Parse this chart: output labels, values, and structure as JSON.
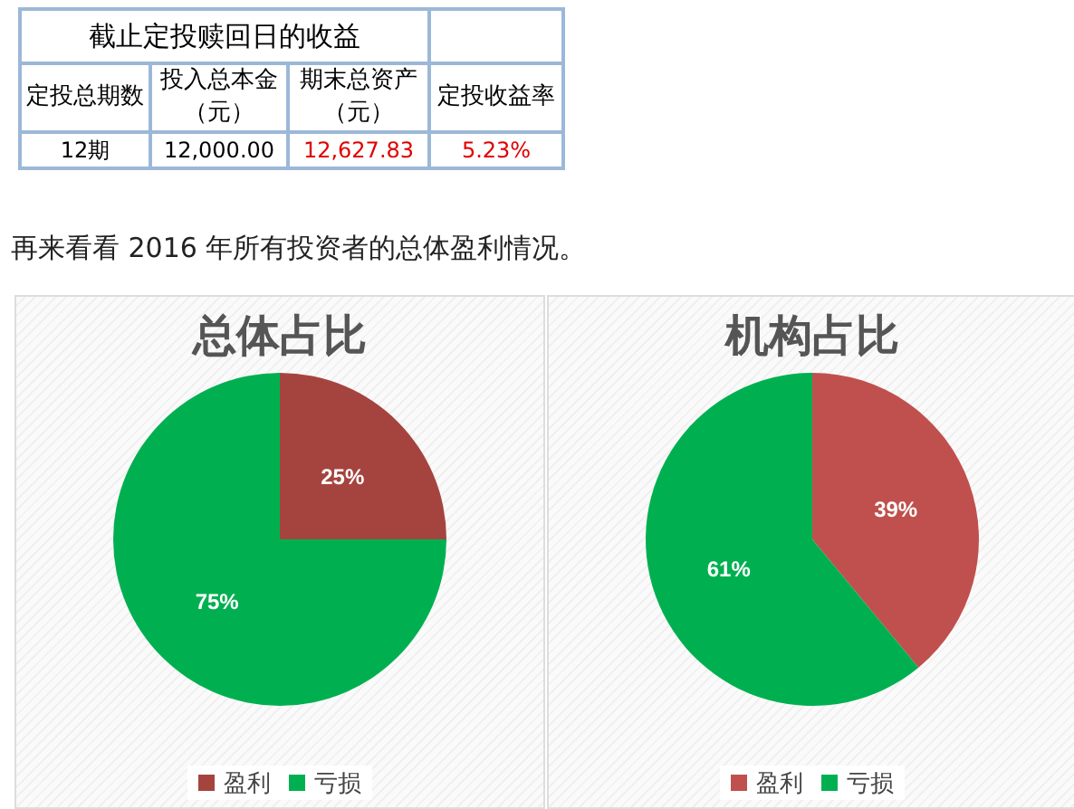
{
  "chart_data": [
    {
      "type": "other",
      "title": "截止定投赎回日的收益",
      "annotations": [
        "定投总期数",
        "投入总本金（元）",
        "期末总资产（元）",
        "定投收益率",
        "12期",
        "12,000.00",
        "12,627.83",
        "5.23%",
        "再来看看 2016 年所有投资者的总体盈利情况。"
      ]
    },
    {
      "type": "pie",
      "title": "总体占比",
      "categories": [
        "盈利",
        "亏损"
      ],
      "values": [
        25,
        75
      ],
      "colors": [
        "#a5443f",
        "#00b050"
      ],
      "value_labels": [
        "25%",
        "75%"
      ],
      "legend": "bottom"
    },
    {
      "type": "pie",
      "title": "机构占比",
      "categories": [
        "盈利",
        "亏损"
      ],
      "values": [
        39,
        61
      ],
      "colors": [
        "#c0504d",
        "#00b050"
      ],
      "value_labels": [
        "39%",
        "61%"
      ],
      "legend": "bottom"
    }
  ]
}
